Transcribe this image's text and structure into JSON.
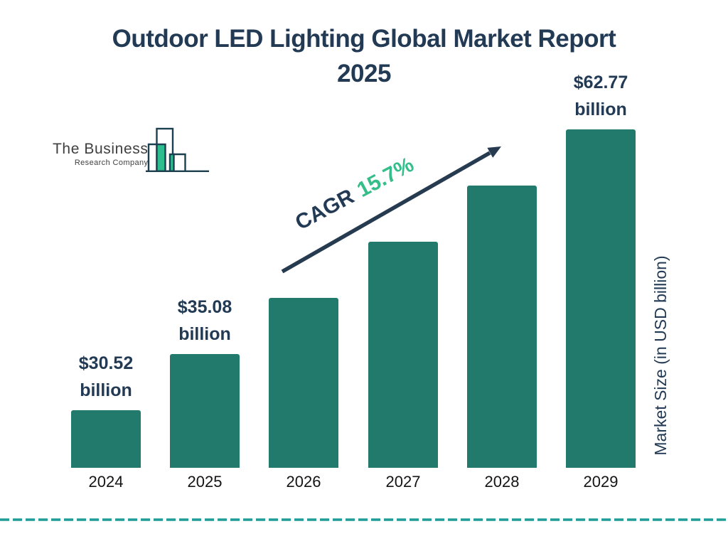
{
  "header": {
    "title_line1": "Outdoor LED Lighting Global Market Report",
    "title_line2": "2025"
  },
  "logo": {
    "name": "The Business",
    "subname": "Research Company"
  },
  "chart_data": {
    "type": "bar",
    "title": "Outdoor LED Lighting Global Market Report 2025",
    "categories": [
      "2024",
      "2025",
      "2026",
      "2027",
      "2028",
      "2029"
    ],
    "values": [
      30.52,
      35.08,
      40.59,
      46.96,
      54.33,
      62.77
    ],
    "values_estimated_from_cagr": [
      "2026",
      "2027",
      "2028"
    ],
    "unit": "USD billion",
    "xlabel": "",
    "ylabel": "Market Size (in USD billion)",
    "grid": false,
    "legend": false,
    "value_labels": [
      {
        "category": "2024",
        "lines": [
          "$30.52",
          "billion"
        ]
      },
      {
        "category": "2025",
        "lines": [
          "$35.08",
          "billion"
        ]
      },
      {
        "category": "2029",
        "lines": [
          "$62.77",
          "billion"
        ]
      }
    ],
    "annotation": {
      "cagr_label": "CAGR",
      "cagr_value": "15.7%"
    }
  },
  "colors": {
    "navy_text": "#223a54",
    "bar_teal": "#217a6c",
    "accent_green": "#35bd8a",
    "logo_green": "#2ebd8e",
    "logo_outline": "#1d4051",
    "dashed_line_teal": "#1f9c96",
    "arrow_navy": "#263a50"
  }
}
